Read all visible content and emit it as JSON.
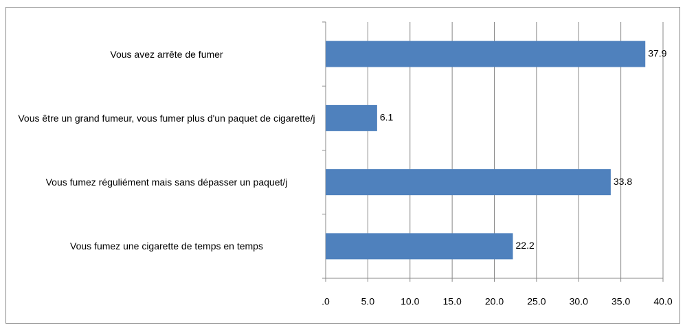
{
  "chart_data": {
    "type": "barh",
    "categories": [
      "Vous avez arrête de fumer",
      "Vous être un grand fumeur, vous fumer plus d'un paquet de cigarette/j",
      "Vous fumez réguliément mais sans dépasser un paquet/j",
      "Vous fumez une cigarette de temps en temps"
    ],
    "values": [
      37.9,
      6.1,
      33.8,
      22.2
    ],
    "color": "#4f81bd",
    "xlim": [
      0,
      40
    ],
    "xticks": [
      {
        "value": 0,
        "label": ".0"
      },
      {
        "value": 5,
        "label": "5.0"
      },
      {
        "value": 10,
        "label": "10.0"
      },
      {
        "value": 15,
        "label": "15.0"
      },
      {
        "value": 20,
        "label": "20.0"
      },
      {
        "value": 25,
        "label": "25.0"
      },
      {
        "value": 30,
        "label": "30.0"
      },
      {
        "value": 35,
        "label": "35.0"
      },
      {
        "value": 40,
        "label": "40.0"
      }
    ],
    "grid": true
  }
}
